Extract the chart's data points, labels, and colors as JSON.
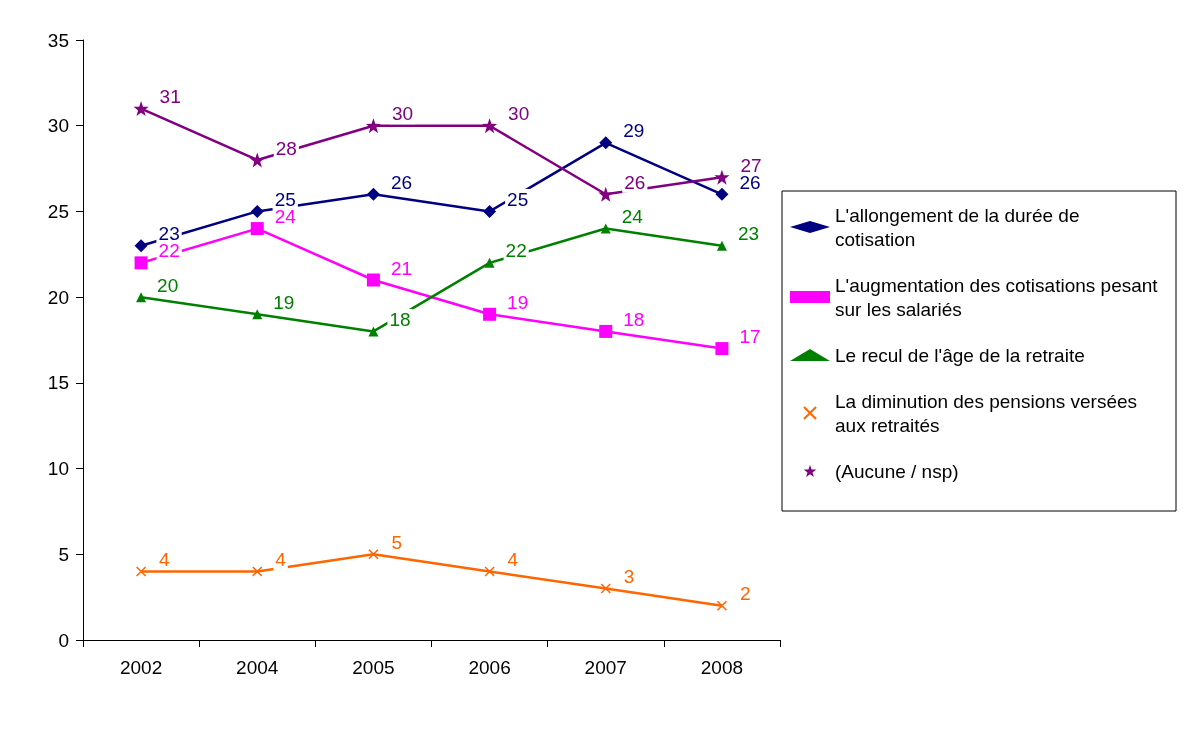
{
  "chart_data": {
    "type": "line",
    "categories": [
      "2002",
      "2004",
      "2005",
      "2006",
      "2007",
      "2008"
    ],
    "series": [
      {
        "name": "L'allongement de la durée de cotisation",
        "color": "#000080",
        "marker": "diamond",
        "values": [
          23,
          25,
          26,
          25,
          29,
          26
        ]
      },
      {
        "name": "L'augmentation des cotisations pesant sur les salariés",
        "color": "#ff00ff",
        "marker": "square",
        "values": [
          22,
          24,
          21,
          19,
          18,
          17
        ]
      },
      {
        "name": "Le recul de l'âge de la retraite",
        "color": "#008000",
        "marker": "triangle",
        "values": [
          20,
          19,
          18,
          22,
          24,
          23
        ]
      },
      {
        "name": "La diminution des pensions versées aux retraités",
        "color": "#ff6600",
        "marker": "cross",
        "values": [
          4,
          4,
          5,
          4,
          3,
          2
        ]
      },
      {
        "name": "(Aucune / nsp)",
        "color": "#800080",
        "marker": "star",
        "values": [
          31,
          28,
          30,
          30,
          26,
          27
        ]
      }
    ],
    "ylim": [
      0,
      35
    ],
    "yticks": [
      0,
      5,
      10,
      15,
      20,
      25,
      30,
      35
    ],
    "grid": false,
    "legend": "right",
    "data_labels": true
  }
}
